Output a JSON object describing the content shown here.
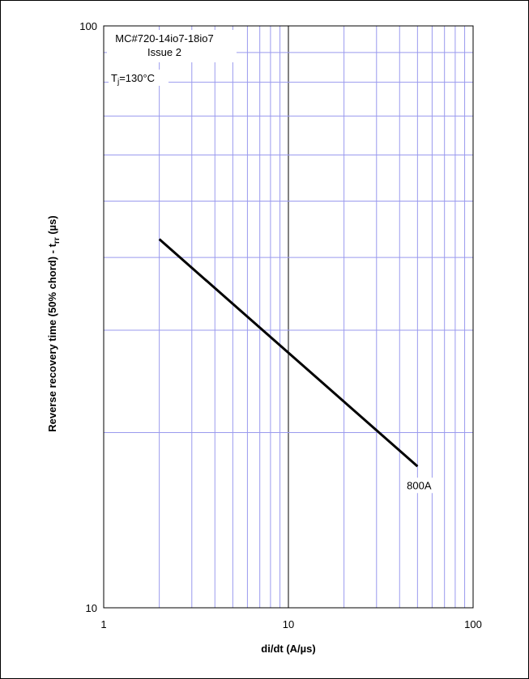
{
  "chart_data": {
    "type": "line",
    "x_scale": "log",
    "y_scale": "log",
    "xlim": [
      1,
      100
    ],
    "ylim": [
      10,
      100
    ],
    "x_ticks": [
      1,
      10,
      100
    ],
    "x_tick_labels": [
      "1",
      "10",
      "100"
    ],
    "y_ticks": [
      10,
      100
    ],
    "y_tick_labels": [
      "10",
      "100"
    ],
    "grid": true,
    "xlabel": "di/dt (A/µs)",
    "ylabel_main": "Reverse recovery time (50% chord) - t",
    "ylabel_sub": "rr",
    "ylabel_unit": " (µs)",
    "annotation_lines": [
      "MC#720-14io7-18io7",
      "Issue 2"
    ],
    "temperature_label": {
      "prefix": "T",
      "sub": "j",
      "value": "=130°C"
    },
    "series": [
      {
        "name": "800A",
        "x": [
          2,
          50
        ],
        "y": [
          43.0,
          17.5
        ]
      }
    ],
    "colors": {
      "grid": "#9a9aee",
      "major_grid": "#000000",
      "series": "#000000"
    }
  }
}
